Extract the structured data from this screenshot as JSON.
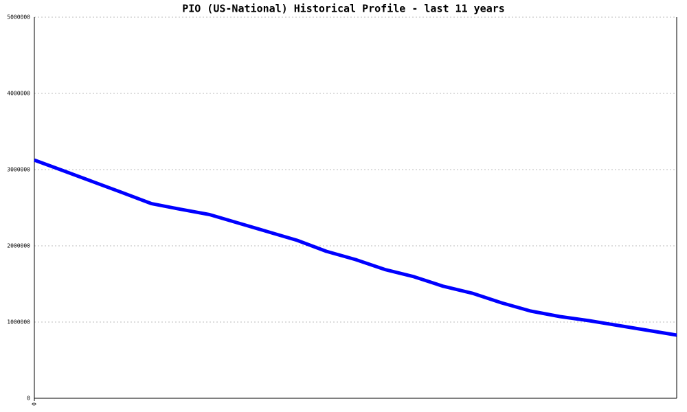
{
  "chart_data": {
    "type": "line",
    "title": "PIO (US-National) Historical Profile - last 11 years",
    "x": [
      0,
      1,
      2,
      3,
      4,
      5,
      6,
      7,
      8,
      9,
      10,
      11,
      12,
      13,
      14,
      15,
      16,
      17,
      18,
      19,
      20,
      21,
      22
    ],
    "series": [
      {
        "color": "#0000ff",
        "values": [
          3125000,
          2984000,
          2842000,
          2700000,
          2555000,
          2480000,
          2410000,
          2297000,
          2185000,
          2072000,
          1928000,
          1820000,
          1690000,
          1595000,
          1470000,
          1378000,
          1252000,
          1144000,
          1072000,
          1018000,
          955000,
          892000,
          829000
        ]
      }
    ],
    "xlim": [
      0,
      22
    ],
    "xticks": [
      0
    ],
    "ylim": [
      0,
      5000000
    ],
    "yticks": [
      0,
      1000000,
      2000000,
      3000000,
      4000000,
      5000000
    ],
    "grid": true
  }
}
